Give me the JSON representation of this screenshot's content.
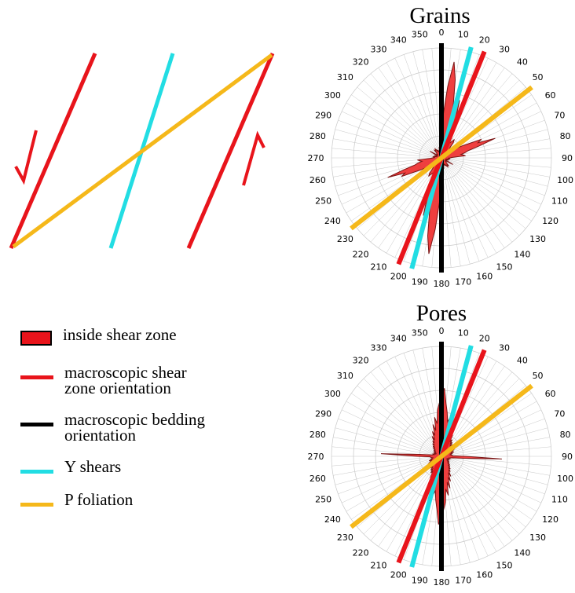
{
  "colors": {
    "shear_zone": "#e8141b",
    "bedding": "#000000",
    "y_shear": "#22dde3",
    "p_foliation": "#f5b81a",
    "rose_fill": "#ee3535",
    "rose_stroke": "#7a1515",
    "grid": "#c8c8c8"
  },
  "roses": [
    {
      "title": "Grains",
      "angle_labels": [
        "0",
        "10",
        "20",
        "30",
        "40",
        "50",
        "60",
        "70",
        "80",
        "90",
        "100",
        "110",
        "120",
        "130",
        "140",
        "150",
        "160",
        "170",
        "180",
        "190",
        "200",
        "210",
        "220",
        "230",
        "240",
        "250",
        "260",
        "270",
        "280",
        "290",
        "300",
        "310",
        "320",
        "330",
        "340",
        "350"
      ],
      "reference_lines": [
        {
          "kind": "bedding",
          "azimuth": 0
        },
        {
          "kind": "y_shear",
          "azimuth": 15
        },
        {
          "kind": "shear_zone",
          "azimuth": 22
        },
        {
          "kind": "p_foliation",
          "azimuth": 52
        }
      ],
      "rose_radii": [
        0.1,
        0.4,
        0.65,
        0.88,
        0.72,
        0.5,
        0.32,
        0.55,
        0.38,
        0.3,
        0.22,
        0.15,
        0.16,
        0.18,
        0.2,
        0.18,
        0.12,
        0.1,
        0.1,
        0.1,
        0.12,
        0.12,
        0.14,
        0.16,
        0.22,
        0.28,
        0.4,
        0.36,
        0.52,
        0.36,
        0.25,
        0.22,
        0.18,
        0.2,
        0.22,
        0.1,
        0.08,
        0.06,
        0.07,
        0.08,
        0.06,
        0.05,
        0.06,
        0.07,
        0.05,
        0.04,
        0.04,
        0.05,
        0.12,
        0.06,
        0.05,
        0.04,
        0.05,
        0.06,
        0.06,
        0.1,
        0.08,
        0.08,
        0.1,
        0.09,
        0.08,
        0.06,
        0.08,
        0.07,
        0.06,
        0.05,
        0.07,
        0.1,
        0.06,
        0.08,
        0.06,
        0.05,
        0.1,
        0.4,
        0.65,
        0.88,
        0.72,
        0.5,
        0.32,
        0.55,
        0.38,
        0.3,
        0.22,
        0.15,
        0.16,
        0.18,
        0.2,
        0.18,
        0.12,
        0.1,
        0.1,
        0.1,
        0.12,
        0.12,
        0.14,
        0.16,
        0.22,
        0.28,
        0.4,
        0.36,
        0.52,
        0.36,
        0.25,
        0.22,
        0.18,
        0.2,
        0.22,
        0.1,
        0.08,
        0.06,
        0.07,
        0.08,
        0.06,
        0.05,
        0.06,
        0.07,
        0.05,
        0.04,
        0.04,
        0.05,
        0.12,
        0.06,
        0.05,
        0.04,
        0.05,
        0.06,
        0.06,
        0.1,
        0.08,
        0.08,
        0.1,
        0.09,
        0.08,
        0.06,
        0.08,
        0.07,
        0.06,
        0.05,
        0.07,
        0.1,
        0.06,
        0.08,
        0.06,
        0.05
      ]
    },
    {
      "title": "Pores",
      "angle_labels": [
        "0",
        "10",
        "20",
        "30",
        "40",
        "50",
        "60",
        "70",
        "80",
        "90",
        "100",
        "110",
        "120",
        "130",
        "140",
        "150",
        "160",
        "170",
        "180",
        "190",
        "200",
        "210",
        "220",
        "230",
        "240",
        "250",
        "260",
        "270",
        "280",
        "290",
        "300",
        "310",
        "320",
        "330",
        "340",
        "350"
      ],
      "reference_lines": [
        {
          "kind": "bedding",
          "azimuth": 0
        },
        {
          "kind": "y_shear",
          "azimuth": 15
        },
        {
          "kind": "shear_zone",
          "azimuth": 22
        },
        {
          "kind": "p_foliation",
          "azimuth": 52
        }
      ],
      "rose_radii": [
        0.55,
        0.62,
        0.48,
        0.4,
        0.32,
        0.36,
        0.26,
        0.3,
        0.22,
        0.26,
        0.18,
        0.22,
        0.15,
        0.18,
        0.14,
        0.16,
        0.12,
        0.14,
        0.12,
        0.1,
        0.13,
        0.11,
        0.12,
        0.1,
        0.14,
        0.12,
        0.11,
        0.1,
        0.12,
        0.09,
        0.1,
        0.09,
        0.08,
        0.09,
        0.1,
        0.1,
        0.22,
        0.55,
        0.2,
        0.1,
        0.08,
        0.07,
        0.08,
        0.07,
        0.06,
        0.07,
        0.06,
        0.07,
        0.06,
        0.07,
        0.08,
        0.07,
        0.09,
        0.08,
        0.1,
        0.09,
        0.12,
        0.1,
        0.14,
        0.12,
        0.16,
        0.14,
        0.2,
        0.16,
        0.24,
        0.2,
        0.3,
        0.24,
        0.36,
        0.3,
        0.42,
        0.48,
        0.55,
        0.62,
        0.48,
        0.4,
        0.32,
        0.36,
        0.26,
        0.3,
        0.22,
        0.26,
        0.18,
        0.22,
        0.15,
        0.18,
        0.14,
        0.16,
        0.12,
        0.14,
        0.12,
        0.1,
        0.13,
        0.11,
        0.12,
        0.1,
        0.14,
        0.12,
        0.11,
        0.1,
        0.12,
        0.09,
        0.1,
        0.09,
        0.08,
        0.09,
        0.1,
        0.1,
        0.22,
        0.55,
        0.2,
        0.1,
        0.08,
        0.07,
        0.08,
        0.07,
        0.06,
        0.07,
        0.06,
        0.07,
        0.06,
        0.07,
        0.08,
        0.07,
        0.09,
        0.08,
        0.1,
        0.09,
        0.12,
        0.1,
        0.14,
        0.12,
        0.16,
        0.14,
        0.2,
        0.16,
        0.24,
        0.2,
        0.3,
        0.24,
        0.36,
        0.3,
        0.42,
        0.48
      ]
    }
  ],
  "legend": [
    {
      "kind": "box",
      "color_key": "shear_zone",
      "label": "inside shear zone"
    },
    {
      "kind": "line",
      "color_key": "shear_zone",
      "label": "macroscopic shear\nzone orientation"
    },
    {
      "kind": "line",
      "color_key": "bedding",
      "label": "macroscopic bedding\norientation"
    },
    {
      "kind": "line",
      "color_key": "y_shear",
      "label": "Y shears"
    },
    {
      "kind": "line",
      "color_key": "p_foliation",
      "label": "P foliation"
    }
  ]
}
